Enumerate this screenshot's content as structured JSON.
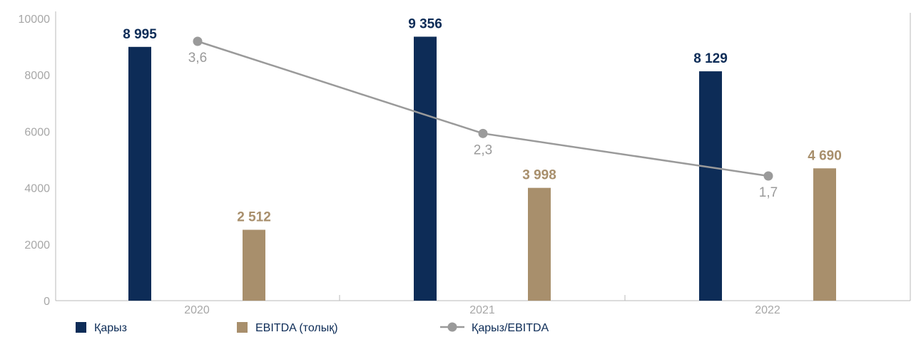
{
  "chart_data": {
    "type": "bar",
    "categories": [
      "2020",
      "2021",
      "2022"
    ],
    "ylim": [
      0,
      10000
    ],
    "yticks": [
      "0",
      "2000",
      "4000",
      "6000",
      "8000",
      "10000"
    ],
    "series": [
      {
        "name": "Қарыз",
        "type": "bar",
        "color": "#0d2c57",
        "values": [
          8995,
          9356,
          8129
        ],
        "labels": [
          "8 995",
          "9 356",
          "8 129"
        ]
      },
      {
        "name": "EBITDA (толық)",
        "type": "bar",
        "color": "#a88f6c",
        "values": [
          2512,
          3998,
          4690
        ],
        "labels": [
          "2 512",
          "3 998",
          "4 690"
        ]
      },
      {
        "name": "Қарыз/EBITDA",
        "type": "line",
        "axis": "secondary",
        "color": "#9a9a9a",
        "values": [
          3.6,
          2.3,
          1.7
        ],
        "labels": [
          "3,6",
          "2,3",
          "1,7"
        ]
      }
    ],
    "grid": false,
    "legend_position": "bottom-left"
  }
}
